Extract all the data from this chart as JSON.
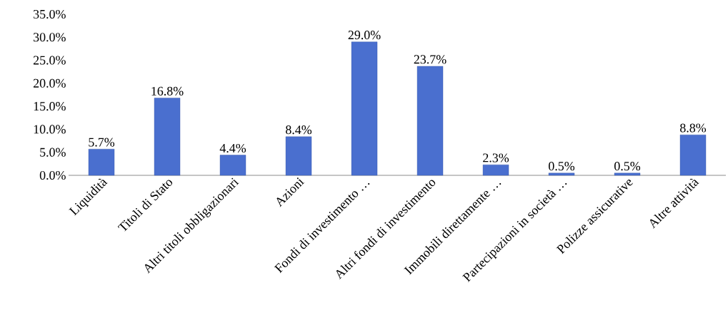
{
  "chart_data": {
    "type": "bar",
    "categories": [
      "Liquidità",
      "Titoli di Stato",
      "Altri titoli obbligazionari",
      "Azioni",
      "Fondi di investimento …",
      "Altri fondi di investimento",
      "Immobili direttamente …",
      "Partecipazioni in società …",
      "Polizze assicurative",
      "Altre attività"
    ],
    "values": [
      5.7,
      16.8,
      4.4,
      8.4,
      29.0,
      23.7,
      2.3,
      0.5,
      0.5,
      8.8
    ],
    "value_labels": [
      "5.7%",
      "16.8%",
      "4.4%",
      "8.4%",
      "29.0%",
      "23.7%",
      "2.3%",
      "0.5%",
      "0.5%",
      "8.8%"
    ],
    "color": "#4a6fcf",
    "ylim": [
      0,
      35
    ],
    "yticks": [
      {
        "value": 0,
        "label": "0.0%"
      },
      {
        "value": 5,
        "label": "5.0%"
      },
      {
        "value": 10,
        "label": "10.0%"
      },
      {
        "value": 15,
        "label": "15.0%"
      },
      {
        "value": 20,
        "label": "20.0%"
      },
      {
        "value": 25,
        "label": "25.0%"
      },
      {
        "value": 30,
        "label": "30.0%"
      },
      {
        "value": 35,
        "label": "35.0%"
      }
    ],
    "grid": false
  }
}
